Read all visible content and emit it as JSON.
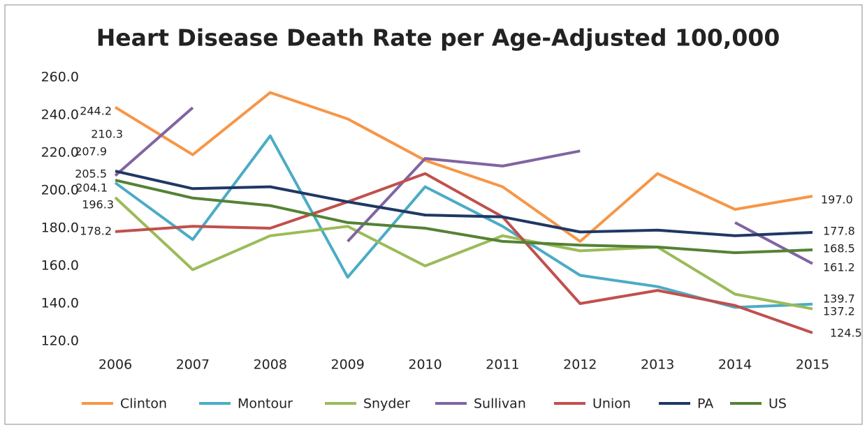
{
  "chart_data": {
    "type": "line",
    "title": "Heart Disease Death Rate per Age-Adjusted 100,000",
    "categories": [
      "2006",
      "2007",
      "2008",
      "2009",
      "2010",
      "2011",
      "2012",
      "2013",
      "2014",
      "2015"
    ],
    "ylim": [
      120,
      260
    ],
    "yticks": [
      {
        "value": 120,
        "label": "120.0"
      },
      {
        "value": 140,
        "label": "140.0"
      },
      {
        "value": 160,
        "label": "160.0"
      },
      {
        "value": 180,
        "label": "180.0"
      },
      {
        "value": 200,
        "label": "200.0"
      },
      {
        "value": 220,
        "label": "220.0"
      },
      {
        "value": 240,
        "label": "240.0"
      },
      {
        "value": 260,
        "label": "260.0"
      }
    ],
    "grid": false,
    "legend": "bottom",
    "series": [
      {
        "name": "Clinton",
        "color": "#f79646",
        "values": [
          244.2,
          219,
          252,
          238,
          216,
          202,
          173,
          209,
          190,
          197.0
        ],
        "value_labels": [
          "244.2",
          null,
          null,
          null,
          null,
          null,
          null,
          null,
          null,
          "197.0"
        ]
      },
      {
        "name": "Montour",
        "color": "#4bacc6",
        "values": [
          204.1,
          174,
          229,
          154,
          202,
          181,
          155,
          149,
          138,
          139.7
        ],
        "value_labels": [
          "204.1",
          null,
          null,
          null,
          null,
          null,
          null,
          null,
          null,
          "139.7"
        ]
      },
      {
        "name": "Snyder",
        "color": "#9bbb59",
        "values": [
          196.3,
          158,
          176,
          181,
          160,
          176,
          168,
          170,
          145,
          137.2
        ],
        "value_labels": [
          "196.3",
          null,
          null,
          null,
          null,
          null,
          null,
          null,
          null,
          "137.2"
        ]
      },
      {
        "name": "Sullivan",
        "color": "#8064a2",
        "values": [
          207.9,
          244,
          null,
          173,
          217,
          213,
          221,
          null,
          183,
          161.2
        ],
        "value_labels": [
          "207.9",
          null,
          null,
          null,
          null,
          null,
          null,
          null,
          null,
          "161.2"
        ]
      },
      {
        "name": "Union",
        "color": "#c0504d",
        "values": [
          178.2,
          181,
          180,
          194,
          209,
          186,
          140,
          147,
          139,
          124.5
        ],
        "value_labels": [
          "178.2",
          null,
          null,
          null,
          null,
          null,
          null,
          null,
          null,
          "124.5"
        ]
      },
      {
        "name": "PA",
        "color": "#1f3864",
        "values": [
          210.3,
          201,
          202,
          194,
          187,
          186,
          178,
          179,
          176,
          177.8
        ],
        "value_labels": [
          "210.3",
          null,
          null,
          null,
          null,
          null,
          null,
          null,
          null,
          "177.8"
        ]
      },
      {
        "name": "US",
        "color": "#548235",
        "values": [
          205.5,
          196,
          192,
          183,
          180,
          173,
          171,
          170,
          167,
          168.5
        ],
        "value_labels": [
          "205.5",
          null,
          null,
          null,
          null,
          null,
          null,
          null,
          null,
          "168.5"
        ]
      }
    ]
  }
}
